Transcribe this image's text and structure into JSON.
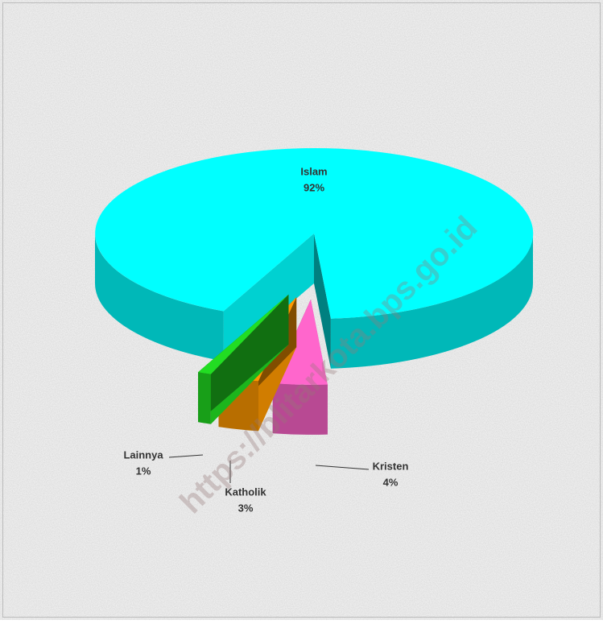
{
  "chart_data": {
    "type": "pie",
    "categories": [
      "Islam",
      "Kristen",
      "Katholik",
      "Lainnya"
    ],
    "values": [
      92,
      4,
      3,
      1
    ],
    "value_labels": [
      "92%",
      "4%",
      "3%",
      "1%"
    ],
    "colors": [
      "#00ffff",
      "#ff66cc",
      "#ff9900",
      "#22dd22"
    ],
    "exploded": [
      false,
      true,
      true,
      true
    ],
    "watermark": "https://blitarkota.bps.go.id"
  }
}
